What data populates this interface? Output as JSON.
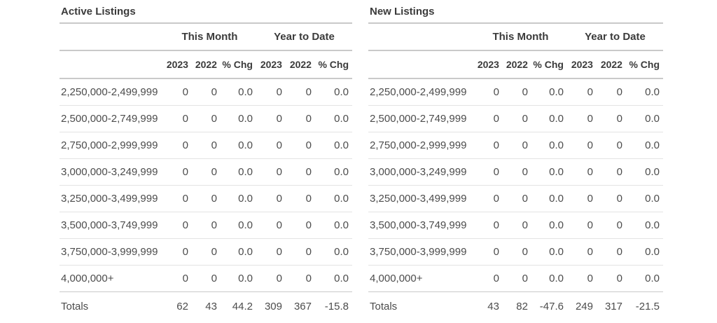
{
  "colors": {
    "background": "#ffffff",
    "header_text": "#3b3b3b",
    "data_text": "#4c4c4c",
    "border_major": "#c9c9c9",
    "border_minor": "#e3e3e3"
  },
  "tables": [
    {
      "title": "Active Listings",
      "group_headers": [
        "This Month",
        "Year to Date"
      ],
      "col_headers": [
        "2023",
        "2022",
        "% Chg",
        "2023",
        "2022",
        "% Chg"
      ],
      "rows": [
        {
          "label": "2,250,000-2,499,999",
          "values": [
            "0",
            "0",
            "0.0",
            "0",
            "0",
            "0.0"
          ]
        },
        {
          "label": "2,500,000-2,749,999",
          "values": [
            "0",
            "0",
            "0.0",
            "0",
            "0",
            "0.0"
          ]
        },
        {
          "label": "2,750,000-2,999,999",
          "values": [
            "0",
            "0",
            "0.0",
            "0",
            "0",
            "0.0"
          ]
        },
        {
          "label": "3,000,000-3,249,999",
          "values": [
            "0",
            "0",
            "0.0",
            "0",
            "0",
            "0.0"
          ]
        },
        {
          "label": "3,250,000-3,499,999",
          "values": [
            "0",
            "0",
            "0.0",
            "0",
            "0",
            "0.0"
          ]
        },
        {
          "label": "3,500,000-3,749,999",
          "values": [
            "0",
            "0",
            "0.0",
            "0",
            "0",
            "0.0"
          ]
        },
        {
          "label": "3,750,000-3,999,999",
          "values": [
            "0",
            "0",
            "0.0",
            "0",
            "0",
            "0.0"
          ]
        },
        {
          "label": "4,000,000+",
          "values": [
            "0",
            "0",
            "0.0",
            "0",
            "0",
            "0.0"
          ]
        }
      ],
      "totals": {
        "label": "Totals",
        "values": [
          "62",
          "43",
          "44.2",
          "309",
          "367",
          "-15.8"
        ]
      }
    },
    {
      "title": "New Listings",
      "group_headers": [
        "This Month",
        "Year to Date"
      ],
      "col_headers": [
        "2023",
        "2022",
        "% Chg",
        "2023",
        "2022",
        "% Chg"
      ],
      "rows": [
        {
          "label": "2,250,000-2,499,999",
          "values": [
            "0",
            "0",
            "0.0",
            "0",
            "0",
            "0.0"
          ]
        },
        {
          "label": "2,500,000-2,749,999",
          "values": [
            "0",
            "0",
            "0.0",
            "0",
            "0",
            "0.0"
          ]
        },
        {
          "label": "2,750,000-2,999,999",
          "values": [
            "0",
            "0",
            "0.0",
            "0",
            "0",
            "0.0"
          ]
        },
        {
          "label": "3,000,000-3,249,999",
          "values": [
            "0",
            "0",
            "0.0",
            "0",
            "0",
            "0.0"
          ]
        },
        {
          "label": "3,250,000-3,499,999",
          "values": [
            "0",
            "0",
            "0.0",
            "0",
            "0",
            "0.0"
          ]
        },
        {
          "label": "3,500,000-3,749,999",
          "values": [
            "0",
            "0",
            "0.0",
            "0",
            "0",
            "0.0"
          ]
        },
        {
          "label": "3,750,000-3,999,999",
          "values": [
            "0",
            "0",
            "0.0",
            "0",
            "0",
            "0.0"
          ]
        },
        {
          "label": "4,000,000+",
          "values": [
            "0",
            "0",
            "0.0",
            "0",
            "0",
            "0.0"
          ]
        }
      ],
      "totals": {
        "label": "Totals",
        "values": [
          "43",
          "82",
          "-47.6",
          "249",
          "317",
          "-21.5"
        ]
      }
    }
  ]
}
